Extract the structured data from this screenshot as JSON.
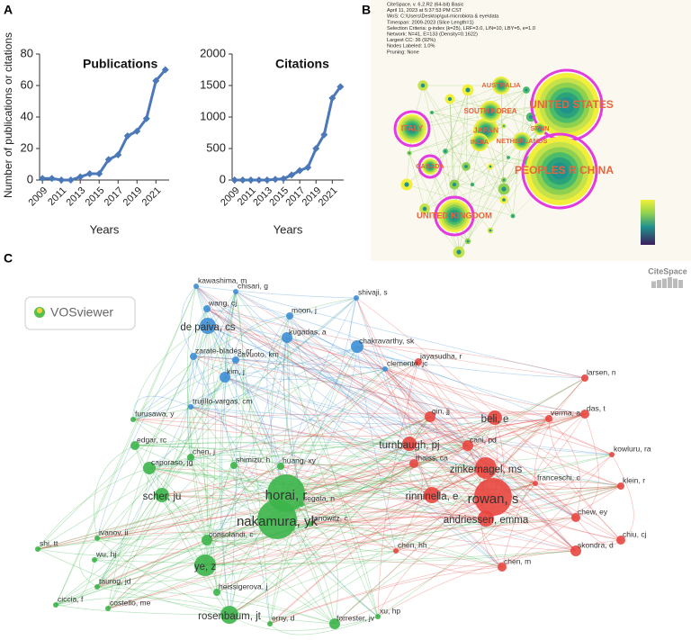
{
  "panel_labels": [
    "A",
    "B",
    "C"
  ],
  "chart_data": [
    {
      "type": "line",
      "title": "Publications",
      "ylabel": "Number of publications or citations",
      "xlabel": "Years",
      "x": [
        2009,
        2010,
        2011,
        2012,
        2013,
        2014,
        2015,
        2016,
        2017,
        2018,
        2019,
        2020,
        2021,
        2022
      ],
      "values": [
        1,
        1,
        0,
        0,
        2,
        4,
        4,
        13,
        16,
        28,
        31,
        39,
        63,
        70
      ],
      "color": "#4a78b8",
      "xlim": [
        2008.7,
        2022.4
      ],
      "xticks": [
        2009,
        2011,
        2013,
        2015,
        2017,
        2019,
        2021
      ],
      "ylim": [
        0,
        80
      ],
      "yticks": [
        0,
        20,
        40,
        60,
        80
      ]
    },
    {
      "type": "line",
      "title": "Citations",
      "xlabel": "Years",
      "x": [
        2009,
        2010,
        2011,
        2012,
        2013,
        2014,
        2015,
        2016,
        2017,
        2018,
        2019,
        2020,
        2021,
        2022
      ],
      "values": [
        0,
        0,
        0,
        0,
        0,
        10,
        20,
        80,
        150,
        200,
        500,
        720,
        1300,
        1480
      ],
      "color": "#4a78b8",
      "xlim": [
        2008.7,
        2022.4
      ],
      "xticks": [
        2009,
        2011,
        2013,
        2015,
        2017,
        2019,
        2021
      ],
      "ylim": [
        0,
        2000
      ],
      "yticks": [
        0,
        500,
        1000,
        1500,
        2000
      ]
    }
  ],
  "network_b": {
    "header": [
      "CiteSpace, v. 6.2.R2 (64-bit) Basic",
      "April 11, 2023 at 5:37:53 PM CST",
      "WoS: C:\\Users\\Desktop\\gut-microbiota & eye\\data",
      "Timespan: 2009-2023 (Slice Length=1)",
      "Selection Criteria: g-index (k=25), LRF=3.0, L/N=10, LBY=5, e=1.0",
      "Network: N=41, E=133 (Density=0.1622)",
      "Largest CC: 36 (92%)",
      "Nodes Labeled: 1.0%",
      "Pruning: None"
    ],
    "nodes": [
      {
        "label": "UNITED STATES"
      },
      {
        "label": "PEOPLES R CHINA"
      },
      {
        "label": "ITALY"
      },
      {
        "label": "JAPAN"
      },
      {
        "label": "SOUTH KOREA"
      },
      {
        "label": "AUSTRALIA"
      },
      {
        "label": "INDIA"
      },
      {
        "label": "NETHERLANDS"
      },
      {
        "label": "SPAIN"
      },
      {
        "label": "CANADA"
      },
      {
        "label": "UNITED KINGDOM"
      }
    ],
    "logo": "CiteSpace"
  },
  "network_c": {
    "logo": "VOSviewer",
    "nodes": [
      {
        "label": "kawashima, m"
      },
      {
        "label": "chisari, g"
      },
      {
        "label": "wang, cj"
      },
      {
        "label": "de paiva, cs"
      },
      {
        "label": "moon, j"
      },
      {
        "label": "kugadas, a"
      },
      {
        "label": "chakravarthy, sk"
      },
      {
        "label": "shivaji, s"
      },
      {
        "label": "zarate-bladés, cr"
      },
      {
        "label": "cavuoto, km"
      },
      {
        "label": "kim, j"
      },
      {
        "label": "clemente, jc"
      },
      {
        "label": "trujillo-vargas, cm"
      },
      {
        "label": "furusawa, y"
      },
      {
        "label": "edgar, rc"
      },
      {
        "label": "caporaso, jg"
      },
      {
        "label": "chen, j"
      },
      {
        "label": "shimizu, h"
      },
      {
        "label": "huang, xy"
      },
      {
        "label": "horai, r"
      },
      {
        "label": "segata, n"
      },
      {
        "label": "scher, ju"
      },
      {
        "label": "nakamura, yk"
      },
      {
        "label": "janowitz, c"
      },
      {
        "label": "ivanov, ii"
      },
      {
        "label": "consolandi, c"
      },
      {
        "label": "shi, tt"
      },
      {
        "label": "wu, hj"
      },
      {
        "label": "ye, z"
      },
      {
        "label": "taurog, jd"
      },
      {
        "label": "heissigerova, j"
      },
      {
        "label": "rosenbaum, jt"
      },
      {
        "label": "ciccia, f"
      },
      {
        "label": "costello, me"
      },
      {
        "label": "erny, d"
      },
      {
        "label": "forrester, jv"
      },
      {
        "label": "xu, hp"
      },
      {
        "label": "jayasudha, r"
      },
      {
        "label": "larsen, n"
      },
      {
        "label": "qin, jj"
      },
      {
        "label": "beli, e"
      },
      {
        "label": "verma, a"
      },
      {
        "label": "das, t"
      },
      {
        "label": "turnbaugh, pj"
      },
      {
        "label": "cani, pd"
      },
      {
        "label": "kowluru, ra"
      },
      {
        "label": "thaiss, ca"
      },
      {
        "label": "zinkernagel, ms"
      },
      {
        "label": "franceschi, c"
      },
      {
        "label": "klein, r"
      },
      {
        "label": "rinninella, e"
      },
      {
        "label": "rowan, s"
      },
      {
        "label": "andriessen, emma"
      },
      {
        "label": "chew, ey"
      },
      {
        "label": "chiu, cj"
      },
      {
        "label": "skondra, d"
      },
      {
        "label": "chen, hh"
      },
      {
        "label": "chen, m"
      }
    ]
  }
}
